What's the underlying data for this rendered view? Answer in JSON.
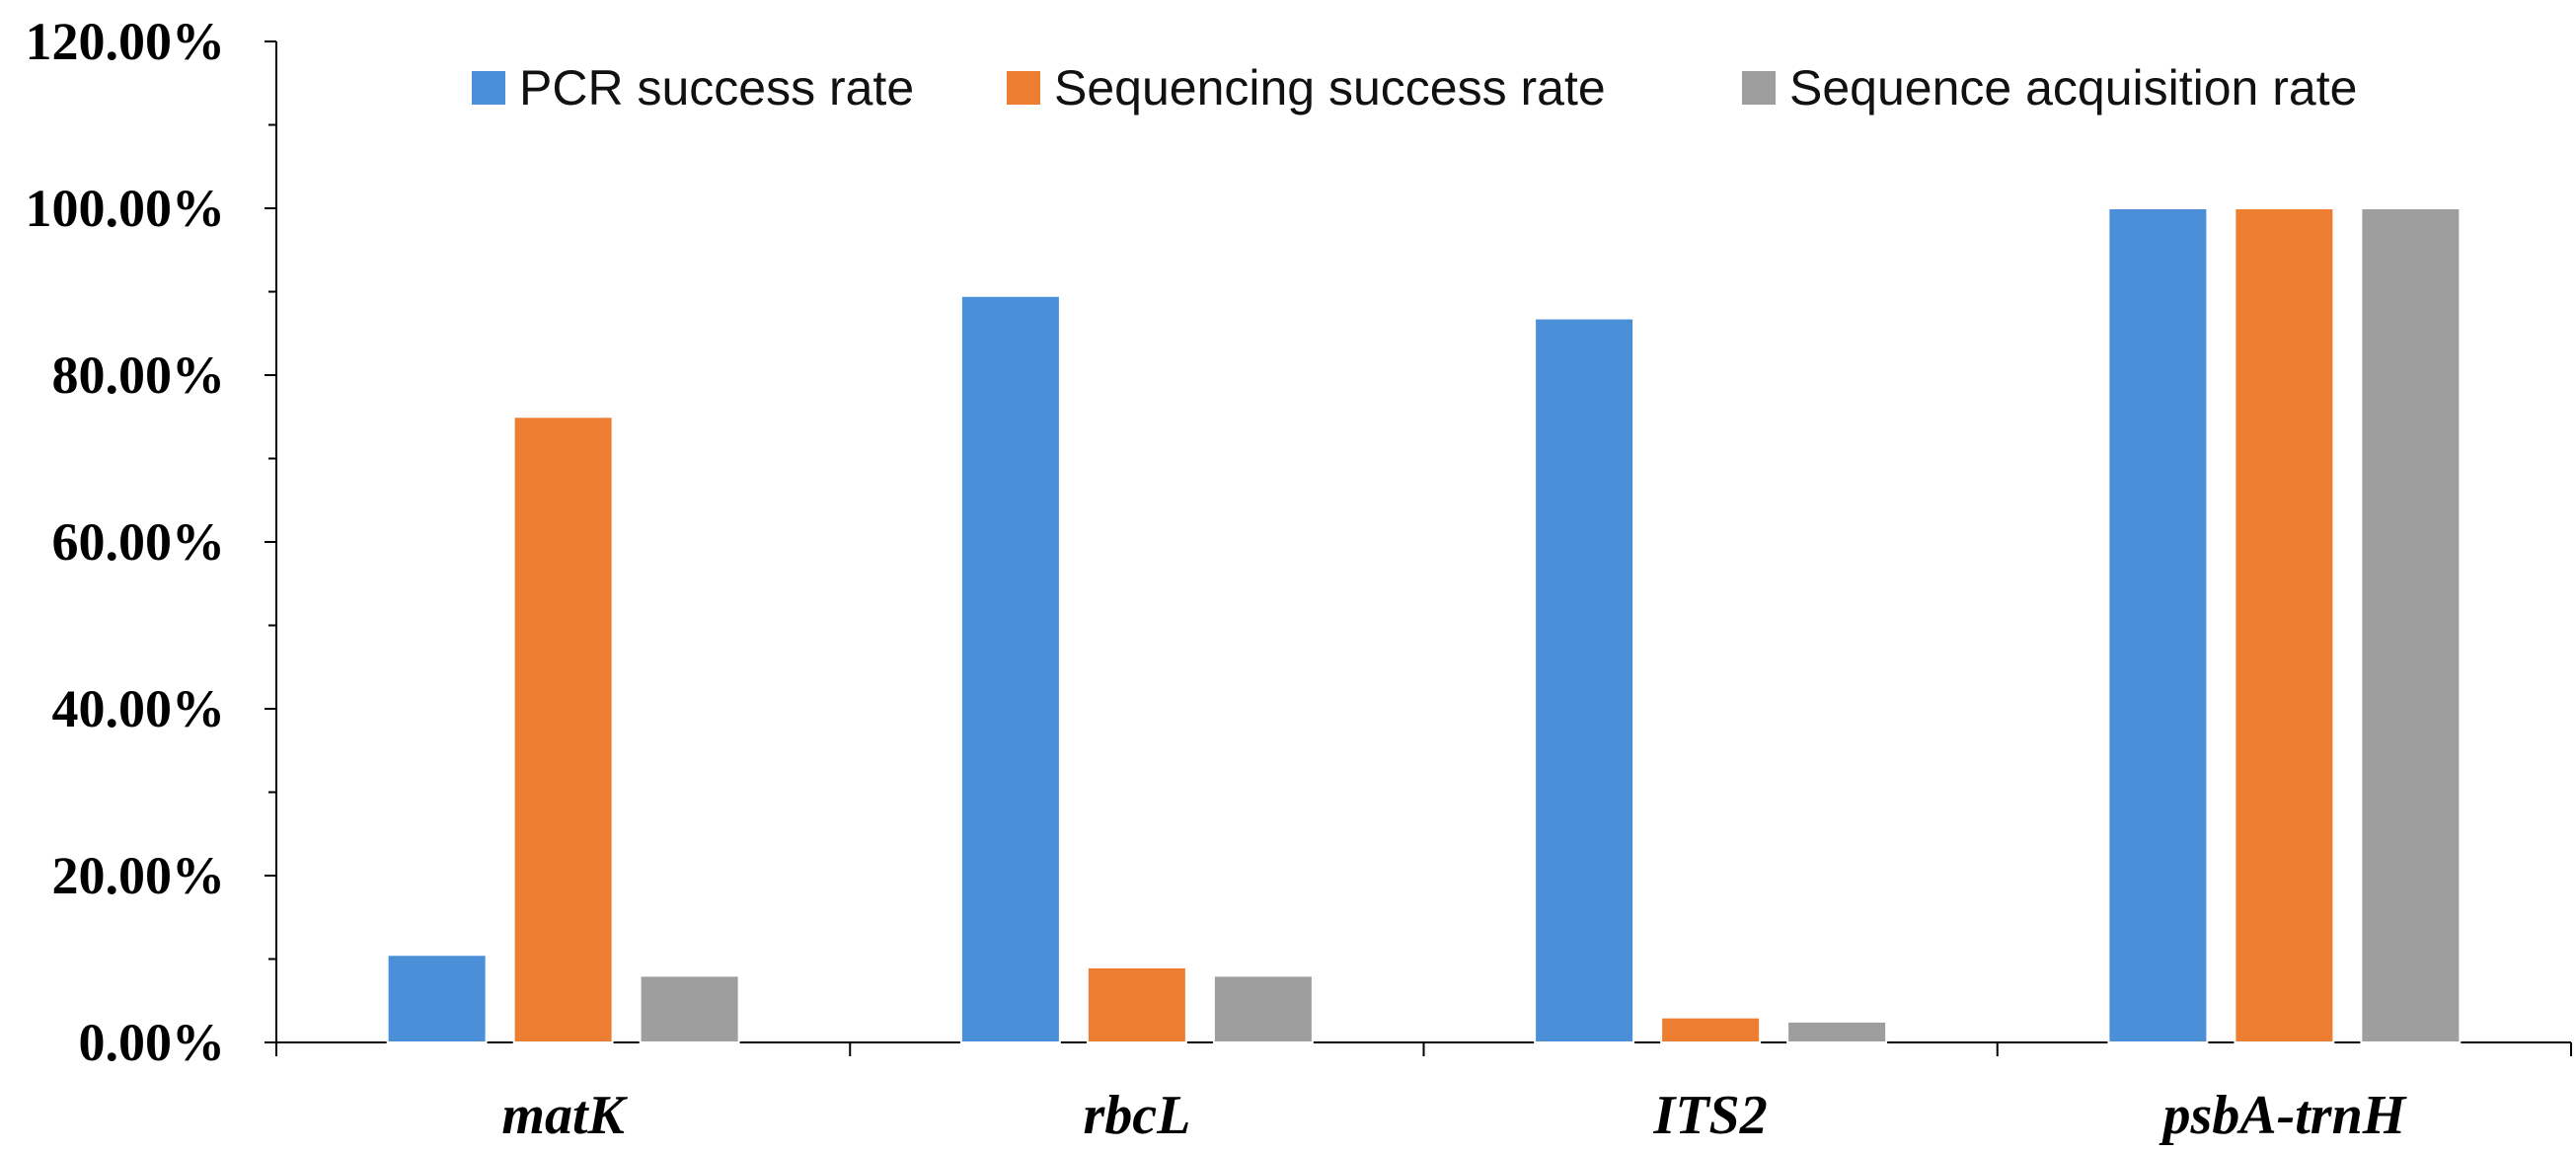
{
  "chart_data": {
    "type": "bar",
    "title": "",
    "xlabel": "",
    "ylabel": "",
    "ylim": [
      0,
      120
    ],
    "yticks": [
      "0.00%",
      "20.00%",
      "40.00%",
      "60.00%",
      "80.00%",
      "100.00%",
      "120.00%"
    ],
    "categories": [
      "matK",
      "rbcL",
      "ITS2",
      "psbA-trnH"
    ],
    "series": [
      {
        "name": "PCR success rate",
        "color": "#4a8fd8",
        "values": [
          10.5,
          89.5,
          86.8,
          100.0
        ]
      },
      {
        "name": "Sequencing success rate",
        "color": "#ed7d31",
        "values": [
          75.0,
          9.0,
          3.0,
          100.0
        ]
      },
      {
        "name": "Sequence acquisition rate",
        "color": "#9e9e9e",
        "values": [
          8.0,
          8.0,
          2.5,
          100.0
        ]
      }
    ],
    "legend_position": "top"
  }
}
